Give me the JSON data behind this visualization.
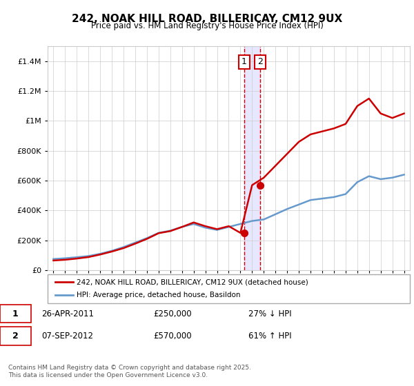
{
  "title": "242, NOAK HILL ROAD, BILLERICAY, CM12 9UX",
  "subtitle": "Price paid vs. HM Land Registry's House Price Index (HPI)",
  "footnote": "Contains HM Land Registry data © Crown copyright and database right 2025.\nThis data is licensed under the Open Government Licence v3.0.",
  "legend_line1": "242, NOAK HILL ROAD, BILLERICAY, CM12 9UX (detached house)",
  "legend_line2": "HPI: Average price, detached house, Basildon",
  "transaction1_label": "1",
  "transaction1_date": "26-APR-2011",
  "transaction1_price": "£250,000",
  "transaction1_hpi": "27% ↓ HPI",
  "transaction2_label": "2",
  "transaction2_date": "07-SEP-2012",
  "transaction2_price": "£570,000",
  "transaction2_hpi": "61% ↑ HPI",
  "property_color": "#cc0000",
  "hpi_color": "#6699cc",
  "vline_color": "#cc0000",
  "vshade_color": "#ddddff",
  "background_color": "#ffffff",
  "ylim": [
    0,
    1500000
  ],
  "yticks": [
    0,
    200000,
    400000,
    600000,
    800000,
    1000000,
    1200000,
    1400000
  ],
  "ytick_labels": [
    "£0",
    "£200K",
    "£400K",
    "£600K",
    "£800K",
    "£1M",
    "£1.2M",
    "£1.4M"
  ],
  "xlim_start": 1994.5,
  "xlim_end": 2025.5,
  "hpi_years": [
    1995,
    1996,
    1997,
    1998,
    1999,
    2000,
    2001,
    2002,
    2003,
    2004,
    2005,
    2006,
    2007,
    2008,
    2009,
    2010,
    2011,
    2012,
    2013,
    2014,
    2015,
    2016,
    2017,
    2018,
    2019,
    2020,
    2021,
    2022,
    2023,
    2024,
    2025
  ],
  "hpi_values": [
    75000,
    80000,
    87000,
    95000,
    110000,
    130000,
    155000,
    185000,
    215000,
    250000,
    265000,
    290000,
    310000,
    285000,
    270000,
    290000,
    310000,
    330000,
    340000,
    375000,
    410000,
    440000,
    470000,
    480000,
    490000,
    510000,
    590000,
    630000,
    610000,
    620000,
    640000
  ],
  "property_years": [
    1995,
    1996,
    1997,
    1998,
    1999,
    2000,
    2001,
    2002,
    2003,
    2004,
    2005,
    2006,
    2007,
    2008,
    2009,
    2010,
    2011,
    2012,
    2013,
    2014,
    2015,
    2016,
    2017,
    2018,
    2019,
    2020,
    2021,
    2022,
    2023,
    2024,
    2025
  ],
  "property_values": [
    65000,
    70000,
    78000,
    88000,
    105000,
    125000,
    148000,
    178000,
    210000,
    248000,
    262000,
    290000,
    320000,
    295000,
    275000,
    295000,
    250000,
    570000,
    620000,
    700000,
    780000,
    860000,
    910000,
    930000,
    950000,
    980000,
    1100000,
    1150000,
    1050000,
    1020000,
    1050000
  ],
  "transaction1_x": 2011.32,
  "transaction1_y": 250000,
  "transaction2_x": 2012.68,
  "transaction2_y": 570000
}
